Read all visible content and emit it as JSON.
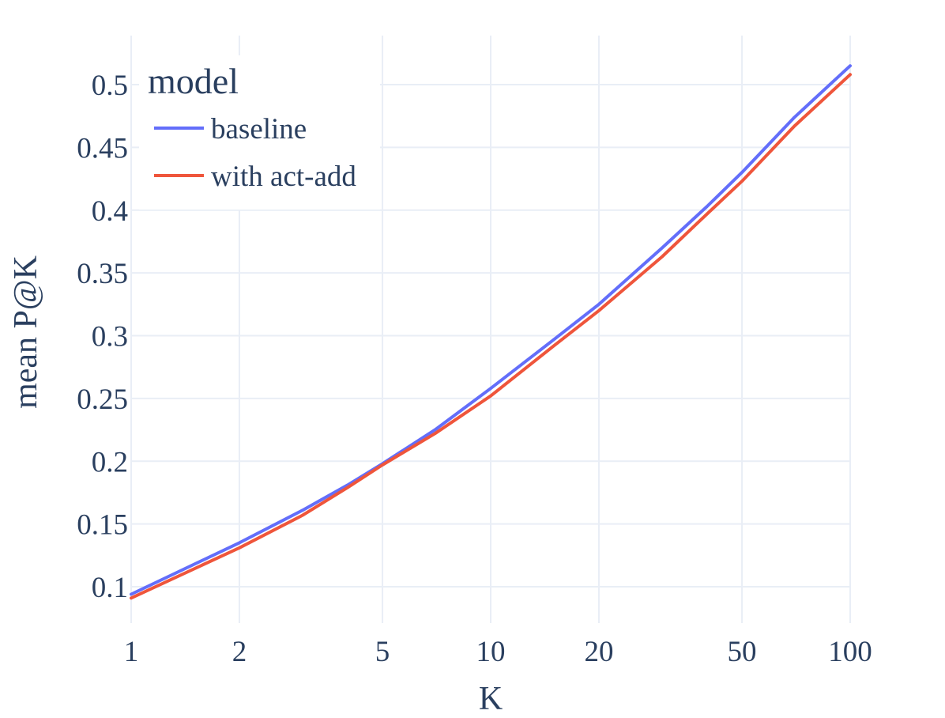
{
  "chart_data": {
    "type": "line",
    "xscale": "log",
    "xlabel": "K",
    "ylabel": "mean P@K",
    "xlim": [
      1,
      100
    ],
    "ylim": [
      0.07,
      0.53
    ],
    "xticks": [
      1,
      2,
      5,
      10,
      20,
      50,
      100
    ],
    "xtick_labels": [
      "1",
      "2",
      "5",
      "10",
      "20",
      "50",
      "100"
    ],
    "yticks": [
      0.1,
      0.15,
      0.2,
      0.25,
      0.3,
      0.35,
      0.4,
      0.45,
      0.5
    ],
    "ytick_labels": [
      "0.1",
      "0.15",
      "0.2",
      "0.25",
      "0.3",
      "0.35",
      "0.4",
      "0.45",
      "0.5"
    ],
    "grid": true,
    "legend": {
      "title": "model",
      "placement": "top-left"
    },
    "series": [
      {
        "name": "baseline",
        "color": "#636efa",
        "x": [
          1,
          2,
          3,
          4,
          5,
          7,
          10,
          15,
          20,
          30,
          40,
          50,
          70,
          100
        ],
        "y": [
          0.094,
          0.135,
          0.161,
          0.181,
          0.198,
          0.225,
          0.258,
          0.297,
          0.325,
          0.37,
          0.403,
          0.43,
          0.474,
          0.515
        ]
      },
      {
        "name": "with act-add",
        "color": "#ef553b",
        "x": [
          1,
          2,
          3,
          4,
          5,
          7,
          10,
          15,
          20,
          30,
          40,
          50,
          70,
          100
        ],
        "y": [
          0.091,
          0.131,
          0.157,
          0.179,
          0.197,
          0.222,
          0.252,
          0.292,
          0.32,
          0.363,
          0.397,
          0.423,
          0.467,
          0.508
        ]
      }
    ]
  }
}
